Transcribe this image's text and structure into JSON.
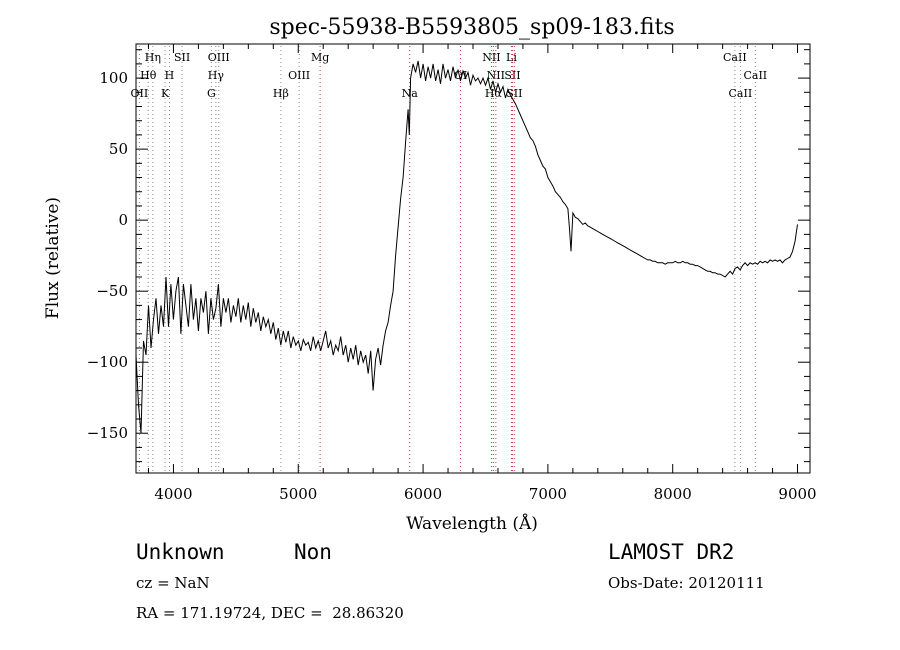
{
  "chart_data": {
    "type": "line",
    "title": "spec-55938-B5593805_sp09-183.fits",
    "xlabel": "Wavelength (Å)",
    "ylabel": "Flux (relative)",
    "xlim": [
      3700,
      9100
    ],
    "ylim": [
      -178,
      124
    ],
    "xticks": [
      4000,
      5000,
      6000,
      7000,
      8000,
      9000
    ],
    "yticks": [
      -150,
      -100,
      -50,
      0,
      50,
      100
    ],
    "grid": false,
    "series": [
      {
        "points": [
          [
            3700,
            -95
          ],
          [
            3720,
            -130
          ],
          [
            3740,
            -150
          ],
          [
            3760,
            -85
          ],
          [
            3780,
            -95
          ],
          [
            3800,
            -60
          ],
          [
            3820,
            -90
          ],
          [
            3840,
            -70
          ],
          [
            3860,
            -55
          ],
          [
            3880,
            -80
          ],
          [
            3900,
            -60
          ],
          [
            3920,
            -75
          ],
          [
            3940,
            -40
          ],
          [
            3960,
            -75
          ],
          [
            3980,
            -45
          ],
          [
            4000,
            -70
          ],
          [
            4020,
            -50
          ],
          [
            4040,
            -40
          ],
          [
            4060,
            -80
          ],
          [
            4080,
            -45
          ],
          [
            4100,
            -60
          ],
          [
            4120,
            -75
          ],
          [
            4140,
            -45
          ],
          [
            4160,
            -70
          ],
          [
            4180,
            -55
          ],
          [
            4200,
            -78
          ],
          [
            4220,
            -55
          ],
          [
            4240,
            -65
          ],
          [
            4260,
            -50
          ],
          [
            4280,
            -80
          ],
          [
            4300,
            -55
          ],
          [
            4320,
            -70
          ],
          [
            4340,
            -62
          ],
          [
            4360,
            -45
          ],
          [
            4380,
            -75
          ],
          [
            4400,
            -55
          ],
          [
            4420,
            -65
          ],
          [
            4440,
            -55
          ],
          [
            4460,
            -72
          ],
          [
            4480,
            -60
          ],
          [
            4500,
            -68
          ],
          [
            4520,
            -55
          ],
          [
            4540,
            -72
          ],
          [
            4560,
            -60
          ],
          [
            4580,
            -70
          ],
          [
            4600,
            -58
          ],
          [
            4620,
            -75
          ],
          [
            4640,
            -62
          ],
          [
            4660,
            -72
          ],
          [
            4680,
            -65
          ],
          [
            4700,
            -78
          ],
          [
            4720,
            -68
          ],
          [
            4740,
            -75
          ],
          [
            4760,
            -70
          ],
          [
            4780,
            -80
          ],
          [
            4800,
            -72
          ],
          [
            4820,
            -84
          ],
          [
            4840,
            -76
          ],
          [
            4860,
            -88
          ],
          [
            4880,
            -78
          ],
          [
            4900,
            -86
          ],
          [
            4920,
            -78
          ],
          [
            4940,
            -90
          ],
          [
            4960,
            -82
          ],
          [
            4980,
            -88
          ],
          [
            5000,
            -85
          ],
          [
            5020,
            -92
          ],
          [
            5040,
            -84
          ],
          [
            5060,
            -88
          ],
          [
            5080,
            -86
          ],
          [
            5100,
            -92
          ],
          [
            5120,
            -82
          ],
          [
            5140,
            -90
          ],
          [
            5160,
            -85
          ],
          [
            5180,
            -92
          ],
          [
            5200,
            -85
          ],
          [
            5220,
            -78
          ],
          [
            5240,
            -90
          ],
          [
            5260,
            -85
          ],
          [
            5280,
            -95
          ],
          [
            5300,
            -88
          ],
          [
            5320,
            -92
          ],
          [
            5340,
            -82
          ],
          [
            5360,
            -95
          ],
          [
            5380,
            -88
          ],
          [
            5400,
            -100
          ],
          [
            5420,
            -90
          ],
          [
            5440,
            -98
          ],
          [
            5460,
            -88
          ],
          [
            5480,
            -102
          ],
          [
            5500,
            -92
          ],
          [
            5520,
            -100
          ],
          [
            5540,
            -95
          ],
          [
            5560,
            -108
          ],
          [
            5580,
            -92
          ],
          [
            5600,
            -120
          ],
          [
            5620,
            -98
          ],
          [
            5640,
            -90
          ],
          [
            5660,
            -102
          ],
          [
            5680,
            -88
          ],
          [
            5700,
            -78
          ],
          [
            5720,
            -72
          ],
          [
            5740,
            -60
          ],
          [
            5760,
            -50
          ],
          [
            5780,
            -25
          ],
          [
            5800,
            -5
          ],
          [
            5820,
            15
          ],
          [
            5840,
            30
          ],
          [
            5860,
            55
          ],
          [
            5880,
            78
          ],
          [
            5890,
            60
          ],
          [
            5900,
            100
          ],
          [
            5920,
            110
          ],
          [
            5940,
            104
          ],
          [
            5960,
            112
          ],
          [
            5980,
            100
          ],
          [
            6000,
            110
          ],
          [
            6020,
            98
          ],
          [
            6040,
            108
          ],
          [
            6060,
            100
          ],
          [
            6080,
            110
          ],
          [
            6100,
            98
          ],
          [
            6120,
            106
          ],
          [
            6140,
            96
          ],
          [
            6160,
            110
          ],
          [
            6180,
            100
          ],
          [
            6200,
            106
          ],
          [
            6220,
            98
          ],
          [
            6240,
            108
          ],
          [
            6260,
            100
          ],
          [
            6280,
            106
          ],
          [
            6300,
            98
          ],
          [
            6320,
            105
          ],
          [
            6340,
            100
          ],
          [
            6360,
            104
          ],
          [
            6380,
            95
          ],
          [
            6400,
            102
          ],
          [
            6420,
            98
          ],
          [
            6440,
            100
          ],
          [
            6460,
            96
          ],
          [
            6480,
            100
          ],
          [
            6500,
            95
          ],
          [
            6520,
            100
          ],
          [
            6540,
            92
          ],
          [
            6560,
            98
          ],
          [
            6580,
            90
          ],
          [
            6600,
            96
          ],
          [
            6620,
            90
          ],
          [
            6640,
            94
          ],
          [
            6660,
            86
          ],
          [
            6680,
            92
          ],
          [
            6700,
            88
          ],
          [
            6720,
            85
          ],
          [
            6740,
            82
          ],
          [
            6760,
            78
          ],
          [
            6780,
            74
          ],
          [
            6800,
            70
          ],
          [
            6820,
            66
          ],
          [
            6840,
            62
          ],
          [
            6860,
            58
          ],
          [
            6880,
            56
          ],
          [
            6900,
            52
          ],
          [
            6920,
            46
          ],
          [
            6940,
            42
          ],
          [
            6960,
            38
          ],
          [
            6980,
            36
          ],
          [
            7000,
            30
          ],
          [
            7020,
            27
          ],
          [
            7040,
            24
          ],
          [
            7060,
            20
          ],
          [
            7080,
            18
          ],
          [
            7100,
            16
          ],
          [
            7120,
            13
          ],
          [
            7140,
            11
          ],
          [
            7160,
            8
          ],
          [
            7175,
            -8
          ],
          [
            7185,
            -22
          ],
          [
            7200,
            5
          ],
          [
            7220,
            2
          ],
          [
            7240,
            1
          ],
          [
            7260,
            -1
          ],
          [
            7280,
            -3
          ],
          [
            7300,
            -2
          ],
          [
            7320,
            -4
          ],
          [
            7340,
            -5
          ],
          [
            7360,
            -6
          ],
          [
            7380,
            -7
          ],
          [
            7400,
            -8
          ],
          [
            7420,
            -9
          ],
          [
            7440,
            -10
          ],
          [
            7460,
            -11
          ],
          [
            7480,
            -12
          ],
          [
            7500,
            -13
          ],
          [
            7520,
            -14
          ],
          [
            7540,
            -15
          ],
          [
            7560,
            -16
          ],
          [
            7580,
            -17
          ],
          [
            7600,
            -18
          ],
          [
            7620,
            -19
          ],
          [
            7640,
            -20
          ],
          [
            7660,
            -21
          ],
          [
            7680,
            -22
          ],
          [
            7700,
            -23
          ],
          [
            7720,
            -24
          ],
          [
            7740,
            -25
          ],
          [
            7760,
            -26
          ],
          [
            7780,
            -27
          ],
          [
            7800,
            -28
          ],
          [
            7820,
            -28
          ],
          [
            7840,
            -29
          ],
          [
            7860,
            -29
          ],
          [
            7880,
            -30
          ],
          [
            7900,
            -30
          ],
          [
            7920,
            -30
          ],
          [
            7940,
            -31
          ],
          [
            7960,
            -30
          ],
          [
            7980,
            -30
          ],
          [
            8000,
            -30
          ],
          [
            8020,
            -29
          ],
          [
            8040,
            -30
          ],
          [
            8060,
            -30
          ],
          [
            8080,
            -29
          ],
          [
            8100,
            -30
          ],
          [
            8120,
            -30
          ],
          [
            8140,
            -31
          ],
          [
            8160,
            -31
          ],
          [
            8180,
            -32
          ],
          [
            8200,
            -32
          ],
          [
            8220,
            -33
          ],
          [
            8240,
            -34
          ],
          [
            8260,
            -35
          ],
          [
            8280,
            -36
          ],
          [
            8300,
            -36
          ],
          [
            8320,
            -37
          ],
          [
            8340,
            -37
          ],
          [
            8360,
            -38
          ],
          [
            8380,
            -38
          ],
          [
            8400,
            -39
          ],
          [
            8420,
            -40
          ],
          [
            8440,
            -38
          ],
          [
            8460,
            -36
          ],
          [
            8480,
            -38
          ],
          [
            8500,
            -34
          ],
          [
            8520,
            -33
          ],
          [
            8540,
            -35
          ],
          [
            8560,
            -32
          ],
          [
            8580,
            -30
          ],
          [
            8600,
            -32
          ],
          [
            8620,
            -30
          ],
          [
            8640,
            -31
          ],
          [
            8660,
            -30
          ],
          [
            8680,
            -31
          ],
          [
            8700,
            -29
          ],
          [
            8720,
            -30
          ],
          [
            8740,
            -29
          ],
          [
            8760,
            -30
          ],
          [
            8780,
            -28
          ],
          [
            8800,
            -29
          ],
          [
            8820,
            -28
          ],
          [
            8840,
            -29
          ],
          [
            8860,
            -28
          ],
          [
            8880,
            -30
          ],
          [
            8900,
            -28
          ],
          [
            8920,
            -27
          ],
          [
            8940,
            -26
          ],
          [
            8960,
            -22
          ],
          [
            8980,
            -15
          ],
          [
            9000,
            -3
          ]
        ]
      }
    ],
    "lines": [
      {
        "label": "Hη",
        "x": 3835,
        "row": 0
      },
      {
        "label": "Hθ",
        "x": 3798,
        "row": 1
      },
      {
        "label": "OII",
        "x": 3727,
        "row": 2
      },
      {
        "label": "H",
        "x": 3968,
        "row": 1
      },
      {
        "label": "K",
        "x": 3933,
        "row": 2
      },
      {
        "label": "SII",
        "x": 4069,
        "row": 0
      },
      {
        "label": "OIII",
        "x": 4363,
        "row": 0
      },
      {
        "label": "Hγ",
        "x": 4340,
        "row": 1
      },
      {
        "label": "G",
        "x": 4304,
        "row": 2
      },
      {
        "label": "Hβ",
        "x": 4861,
        "row": 2
      },
      {
        "label": "OIII",
        "x": 5007,
        "row": 1
      },
      {
        "label": "Mg",
        "x": 5175,
        "row": 0
      },
      {
        "label": "Na",
        "x": 5893,
        "row": 2
      },
      {
        "label": "OI",
        "x": 6300,
        "row": 1
      },
      {
        "label": "NII",
        "x": 6548,
        "row": 0
      },
      {
        "label": "NII",
        "x": 6583,
        "row": 1
      },
      {
        "label": "Hα",
        "x": 6563,
        "row": 2
      },
      {
        "label": "Li",
        "x": 6708,
        "row": 0
      },
      {
        "label": "SII",
        "x": 6716,
        "row": 1
      },
      {
        "label": "SII",
        "x": 6731,
        "row": 2
      },
      {
        "label": "CaII",
        "x": 8498,
        "row": 0
      },
      {
        "label": "CaII",
        "x": 8662,
        "row": 1
      },
      {
        "label": "CaII",
        "x": 8542,
        "row": 2
      }
    ]
  },
  "footer": {
    "class_label": "Unknown",
    "subclass_label": "Non",
    "cz_text": "cz = NaN",
    "coords_text": "RA = 171.19724, DEC =  28.86320",
    "survey_label": "LAMOST DR2",
    "obs_date_text": "Obs-Date: 20120111"
  }
}
